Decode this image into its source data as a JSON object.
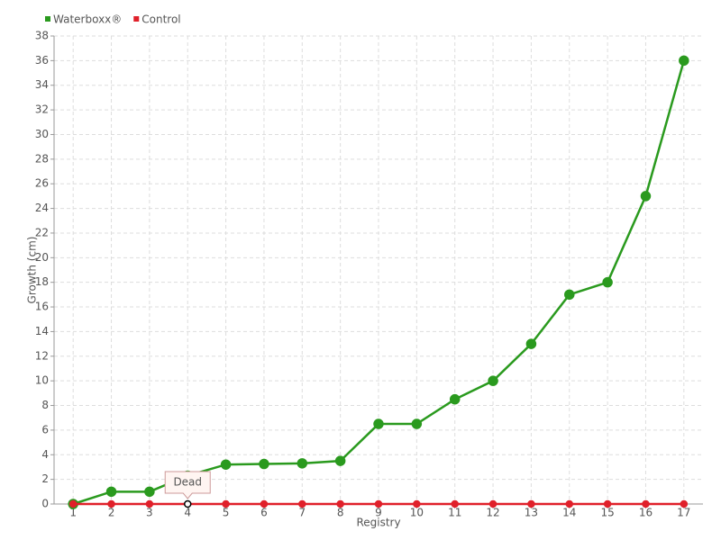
{
  "chart_data": {
    "type": "line",
    "x_label": "Registry",
    "y_label": "Growth (cm)",
    "categories": [
      "1",
      "2",
      "3",
      "4",
      "5",
      "6",
      "7",
      "8",
      "9",
      "10",
      "11",
      "12",
      "13",
      "14",
      "15",
      "16",
      "17"
    ],
    "series": [
      {
        "name": "Waterboxx®",
        "color": "#2a9a1e",
        "values": [
          0,
          1,
          1,
          2.3,
          3.2,
          3.25,
          3.3,
          3.5,
          6.5,
          6.5,
          8.5,
          10,
          13,
          17,
          18,
          25,
          36
        ]
      },
      {
        "name": "Control",
        "color": "#e0202a",
        "values": [
          0,
          0,
          0,
          0,
          0,
          0,
          0,
          0,
          0,
          0,
          0,
          0,
          0,
          0,
          0,
          0,
          0
        ]
      }
    ],
    "ylim": [
      0,
      38
    ],
    "yticks": [
      0,
      2,
      4,
      6,
      8,
      10,
      12,
      14,
      16,
      18,
      20,
      22,
      24,
      26,
      28,
      30,
      32,
      34,
      36,
      38
    ],
    "grid": true,
    "legend": "top-left",
    "annotation": {
      "text": "Dead",
      "series": "Control",
      "category": "4"
    }
  }
}
